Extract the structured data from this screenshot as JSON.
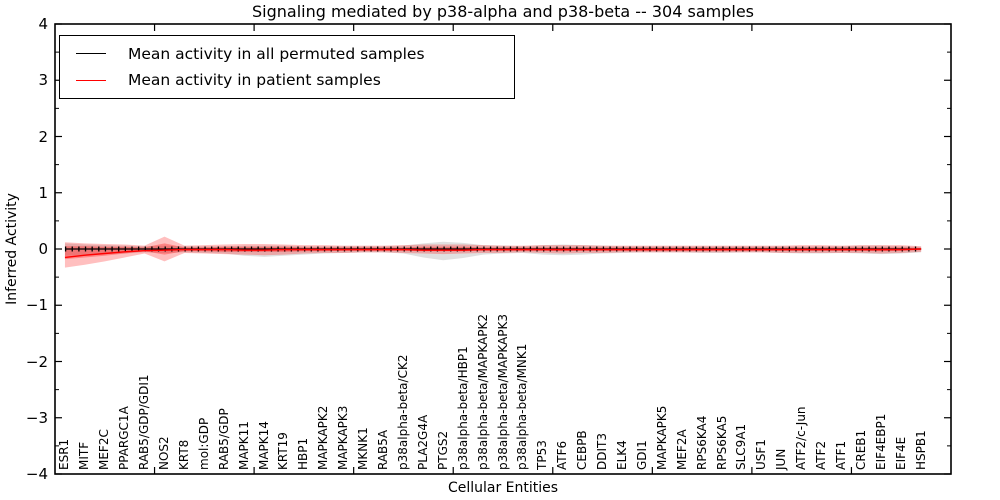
{
  "chart_data": {
    "type": "line",
    "title": "Signaling mediated by p38-alpha and p38-beta -- 304 samples",
    "xlabel": "Cellular Entities",
    "ylabel": "Inferred Activity",
    "xlim": [
      0,
      45
    ],
    "ylim": [
      -4,
      4
    ],
    "background": "#ffffff",
    "frame_color": "#000000",
    "grid": false,
    "legend_position": "upper left",
    "y_axis": {
      "tick_values": [
        -4,
        -3,
        -2,
        -1,
        0,
        1,
        2,
        3,
        4
      ],
      "tick_labels": [
        "−4",
        "−3",
        "−2",
        "−1",
        "0",
        "1",
        "2",
        "3",
        "4"
      ],
      "minor_tick_step": 0.5
    },
    "x_axis": {
      "major_tick_values": [
        5,
        10,
        15,
        20,
        25,
        30,
        35,
        40
      ]
    },
    "categories": [
      "ESR1",
      "MITF",
      "MEF2C",
      "PPARGC1A",
      "RAB5/GDP/GDI1",
      "NOS2",
      "KRT8",
      "mol:GDP",
      "RAB5/GDP",
      "MAPK11",
      "MAPK14",
      "KRT19",
      "HBP1",
      "MAPKAPK2",
      "MAPKAPK3",
      "MKNK1",
      "RAB5A",
      "p38alpha-beta/CK2",
      "PLA2G4A",
      "PTGS2",
      "p38alpha-beta/HBP1",
      "p38alpha-beta/MAPKAPK2",
      "p38alpha-beta/MAPKAPK3",
      "p38alpha-beta/MNK1",
      "TP53",
      "ATF6",
      "CEBPB",
      "DDIT3",
      "ELK4",
      "GDI1",
      "MAPKAPK5",
      "MEF2A",
      "RPS6KA4",
      "RPS6KA5",
      "SLC9A1",
      "USF1",
      "JUN",
      "ATF2/c-Jun",
      "ATF2",
      "ATF1",
      "CREB1",
      "EIF4EBP1",
      "EIF4E",
      "HSPB1"
    ],
    "legend": [
      {
        "label": "Mean activity in all permuted samples",
        "color": "#000000"
      },
      {
        "label": "Mean activity in patient samples",
        "color": "#ff0000"
      }
    ],
    "series": [
      {
        "name": "Mean activity in all permuted samples",
        "color": "#000000",
        "marker": "tick",
        "values": [
          0,
          0,
          0,
          0,
          0,
          0,
          0,
          0,
          0,
          0,
          0,
          0,
          0,
          0,
          0,
          0,
          0,
          0,
          0,
          0,
          0,
          0,
          0,
          0,
          0,
          0,
          0,
          0,
          0,
          0,
          0,
          0,
          0,
          0,
          0,
          0,
          0,
          0,
          0,
          0,
          0,
          0,
          0,
          0
        ],
        "band": {
          "color": "#909090",
          "alpha": 0.28,
          "upper": [
            0.1,
            0.08,
            0.07,
            0.06,
            0.05,
            0.06,
            0.05,
            0.05,
            0.05,
            0.06,
            0.06,
            0.06,
            0.05,
            0.05,
            0.05,
            0.05,
            0.05,
            0.06,
            0.1,
            0.13,
            0.11,
            0.07,
            0.06,
            0.05,
            0.07,
            0.08,
            0.07,
            0.06,
            0.05,
            0.05,
            0.05,
            0.05,
            0.05,
            0.05,
            0.05,
            0.05,
            0.05,
            0.05,
            0.05,
            0.05,
            0.06,
            0.06,
            0.05,
            0.04
          ],
          "lower": [
            -0.12,
            -0.1,
            -0.09,
            -0.08,
            -0.06,
            -0.07,
            -0.06,
            -0.07,
            -0.08,
            -0.12,
            -0.14,
            -0.12,
            -0.1,
            -0.08,
            -0.07,
            -0.06,
            -0.06,
            -0.08,
            -0.15,
            -0.2,
            -0.16,
            -0.1,
            -0.08,
            -0.07,
            -0.1,
            -0.11,
            -0.1,
            -0.08,
            -0.07,
            -0.06,
            -0.06,
            -0.06,
            -0.07,
            -0.07,
            -0.06,
            -0.06,
            -0.07,
            -0.08,
            -0.08,
            -0.07,
            -0.08,
            -0.09,
            -0.08,
            -0.06
          ]
        }
      },
      {
        "name": "Mean activity in patient samples",
        "color": "#ff0000",
        "values": [
          -0.15,
          -0.11,
          -0.08,
          -0.05,
          -0.03,
          -0.02,
          -0.01,
          -0.01,
          -0.01,
          -0.02,
          -0.02,
          -0.01,
          -0.01,
          -0.01,
          -0.01,
          -0.01,
          -0.01,
          -0.01,
          -0.02,
          -0.02,
          -0.02,
          -0.01,
          -0.01,
          -0.01,
          -0.01,
          -0.01,
          -0.01,
          -0.01,
          -0.01,
          -0.01,
          -0.01,
          -0.01,
          -0.01,
          -0.01,
          -0.01,
          -0.01,
          -0.01,
          -0.01,
          -0.01,
          -0.01,
          -0.01,
          -0.01,
          -0.01,
          0.0
        ],
        "band": {
          "color": "#ff0000",
          "alpha": 0.25,
          "upper": [
            0.12,
            0.1,
            0.09,
            0.08,
            0.06,
            0.22,
            0.06,
            0.07,
            0.08,
            0.09,
            0.09,
            0.08,
            0.07,
            0.07,
            0.06,
            0.06,
            0.06,
            0.07,
            0.08,
            0.08,
            0.08,
            0.07,
            0.06,
            0.06,
            0.07,
            0.07,
            0.07,
            0.06,
            0.06,
            0.06,
            0.06,
            0.06,
            0.06,
            0.06,
            0.06,
            0.06,
            0.06,
            0.07,
            0.07,
            0.06,
            0.07,
            0.07,
            0.07,
            0.05
          ],
          "lower": [
            -0.33,
            -0.28,
            -0.22,
            -0.15,
            -0.08,
            -0.22,
            -0.07,
            -0.08,
            -0.09,
            -0.1,
            -0.11,
            -0.1,
            -0.08,
            -0.07,
            -0.07,
            -0.06,
            -0.06,
            -0.07,
            -0.08,
            -0.09,
            -0.08,
            -0.07,
            -0.07,
            -0.06,
            -0.07,
            -0.08,
            -0.07,
            -0.07,
            -0.06,
            -0.06,
            -0.06,
            -0.06,
            -0.06,
            -0.06,
            -0.06,
            -0.06,
            -0.07,
            -0.07,
            -0.07,
            -0.07,
            -0.07,
            -0.08,
            -0.07,
            -0.05
          ]
        },
        "band_inner": {
          "color": "#ff0000",
          "alpha": 0.3,
          "upper": [
            0.05,
            0.05,
            0.04,
            0.04,
            0.03,
            0.1,
            0.03,
            0.03,
            0.04,
            0.04,
            0.04,
            0.04,
            0.03,
            0.03,
            0.03,
            0.03,
            0.03,
            0.03,
            0.04,
            0.04,
            0.04,
            0.03,
            0.03,
            0.03,
            0.03,
            0.03,
            0.03,
            0.03,
            0.03,
            0.03,
            0.03,
            0.03,
            0.03,
            0.03,
            0.03,
            0.03,
            0.03,
            0.03,
            0.03,
            0.03,
            0.03,
            0.03,
            0.03,
            0.02
          ],
          "lower": [
            -0.18,
            -0.15,
            -0.12,
            -0.08,
            -0.04,
            -0.1,
            -0.04,
            -0.04,
            -0.05,
            -0.05,
            -0.05,
            -0.05,
            -0.04,
            -0.04,
            -0.03,
            -0.03,
            -0.03,
            -0.03,
            -0.04,
            -0.04,
            -0.04,
            -0.03,
            -0.03,
            -0.03,
            -0.03,
            -0.04,
            -0.03,
            -0.03,
            -0.03,
            -0.03,
            -0.03,
            -0.03,
            -0.03,
            -0.03,
            -0.03,
            -0.03,
            -0.03,
            -0.03,
            -0.03,
            -0.03,
            -0.03,
            -0.04,
            -0.03,
            -0.02
          ]
        }
      }
    ]
  }
}
